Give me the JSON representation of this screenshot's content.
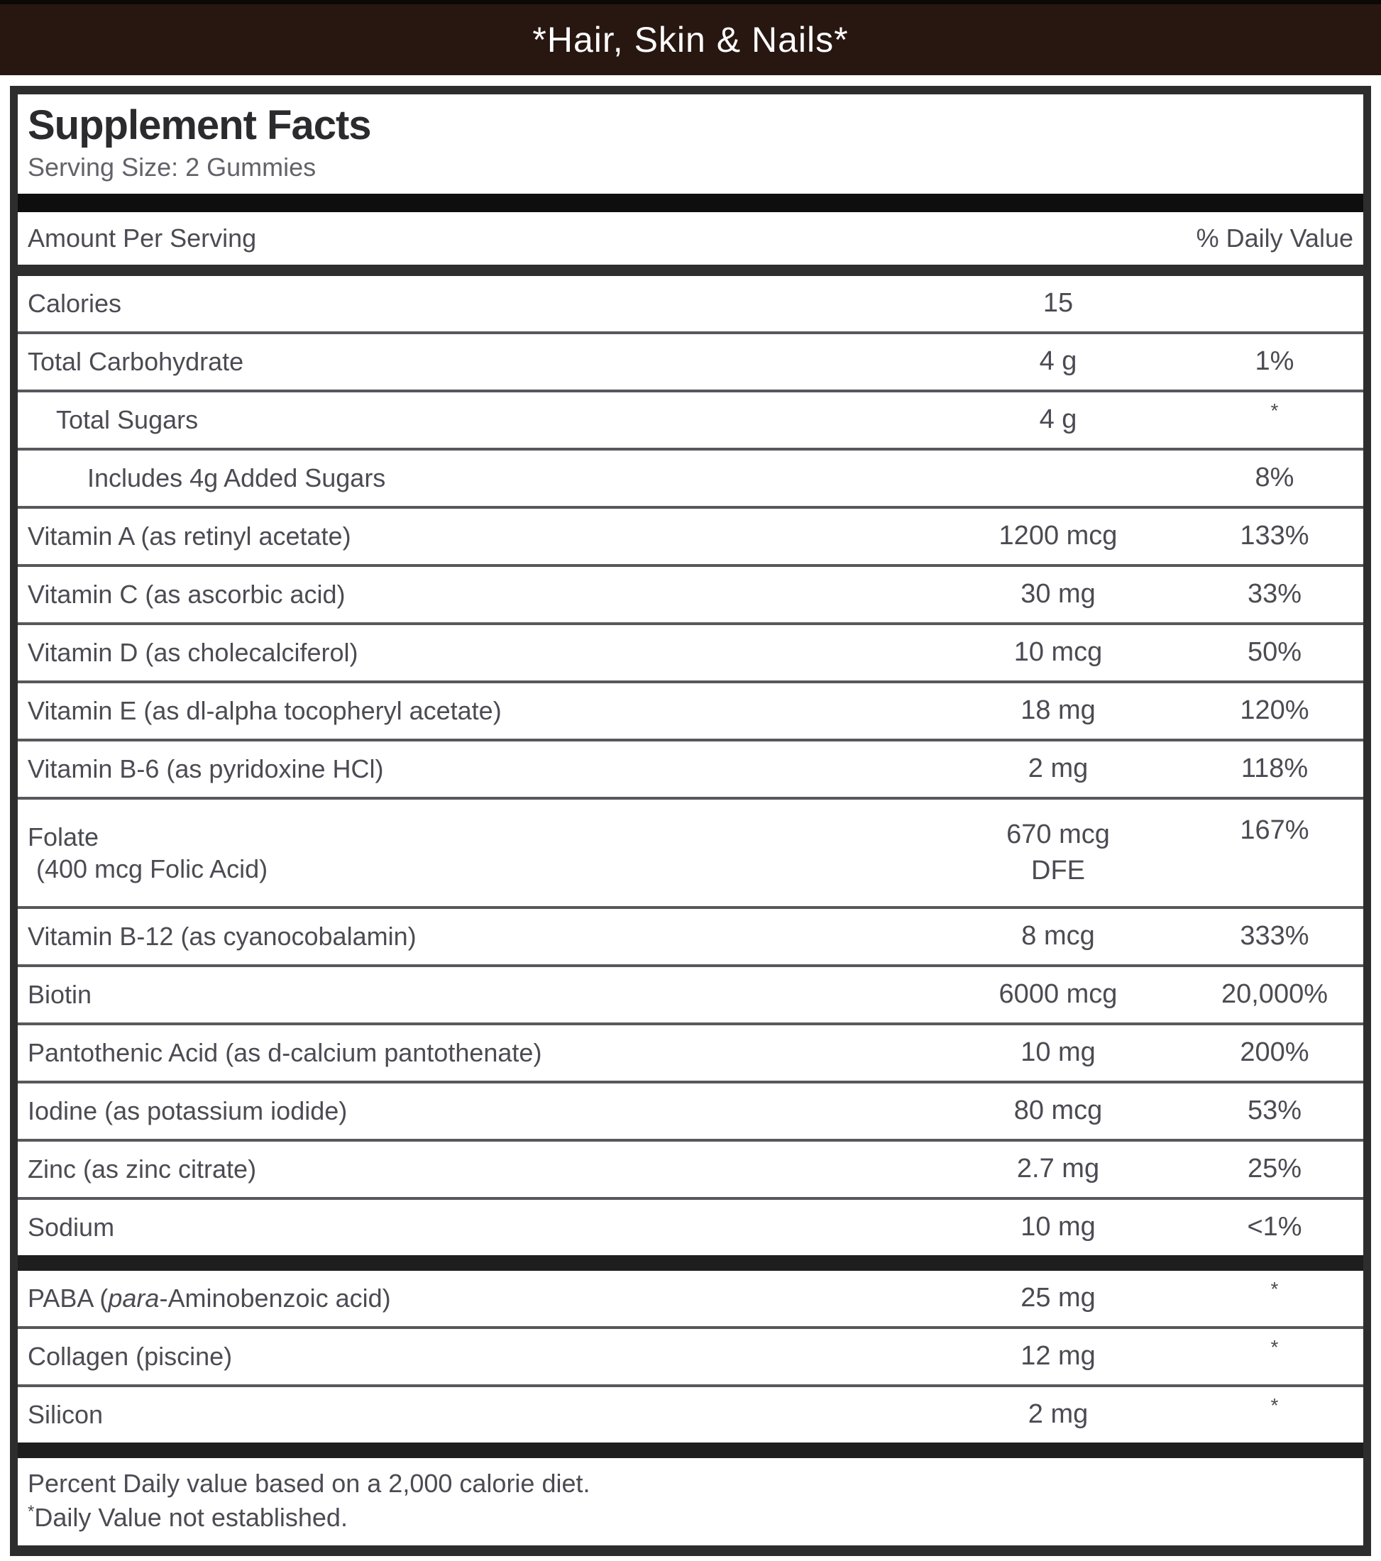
{
  "colors": {
    "banner_bg": "#281711",
    "banner_text": "#ffffff",
    "box_border": "#2d2d2d",
    "bar_black": "#0e0e0e",
    "section_bar": "#1e1e1e",
    "rule_medium": "#2e2e2e",
    "row_separator": "#58585c",
    "title_text": "#2b2b2e",
    "body_text": "#4b4b53",
    "serving_text": "#62626a"
  },
  "banner": {
    "text": "*Hair, Skin & Nails*"
  },
  "label": {
    "title": "Supplement Facts",
    "serving_size": "Serving Size: 2 Gummies",
    "columns": {
      "amount": "Amount Per Serving",
      "daily_value": "% Daily Value"
    },
    "sections": [
      {
        "rows": [
          {
            "label": "Calories",
            "amount": "15",
            "dv": ""
          },
          {
            "label": "Total Carbohydrate",
            "amount": "4 g",
            "dv": "1%"
          },
          {
            "label": "Total Sugars",
            "indent": 1,
            "amount": "4 g",
            "dv": "*"
          },
          {
            "label": "Includes 4g Added Sugars",
            "indent": 2,
            "amount": "",
            "dv": "8%"
          },
          {
            "label": "Vitamin A (as retinyl acetate)",
            "amount": "1200 mcg",
            "dv": "133%"
          },
          {
            "label": "Vitamin C (as ascorbic acid)",
            "amount": "30 mg",
            "dv": "33%"
          },
          {
            "label": "Vitamin D (as cholecalciferol)",
            "amount": "10 mcg",
            "dv": "50%"
          },
          {
            "label": "Vitamin E (as dl-alpha tocopheryl acetate)",
            "amount": "18 mg",
            "dv": "120%"
          },
          {
            "label": "Vitamin B-6 (as pyridoxine HCl)",
            "amount": "2 mg",
            "dv": "118%"
          },
          {
            "label": "Folate",
            "label_line2": "(400 mcg Folic Acid)",
            "amount": "670 mcg",
            "amount_line2": "DFE",
            "dv": "167%",
            "tall": true
          },
          {
            "label": "Vitamin B-12 (as cyanocobalamin)",
            "amount": "8 mcg",
            "dv": "333%"
          },
          {
            "label": "Biotin",
            "amount": "6000 mcg",
            "dv": "20,000%"
          },
          {
            "label": "Pantothenic Acid (as d-calcium pantothenate)",
            "amount": "10 mg",
            "dv": "200%"
          },
          {
            "label": "Iodine (as potassium iodide)",
            "amount": "80 mcg",
            "dv": "53%"
          },
          {
            "label": "Zinc (as zinc citrate)",
            "amount": "2.7 mg",
            "dv": "25%"
          },
          {
            "label": "Sodium",
            "amount": "10 mg",
            "dv": "<1%"
          }
        ]
      },
      {
        "rows": [
          {
            "label_pre": "PABA (",
            "label_em": "para",
            "label_post": "-Aminobenzoic acid)",
            "amount": "25 mg",
            "dv": "*"
          },
          {
            "label": "Collagen (piscine)",
            "amount": "12 mg",
            "dv": "*"
          },
          {
            "label": "Silicon",
            "amount": "2 mg",
            "dv": "*"
          }
        ]
      }
    ],
    "footnotes": {
      "line1": "Percent Daily value based on a 2,000 calorie diet.",
      "line2_asterisk": "*",
      "line2": "Daily Value not established."
    }
  }
}
